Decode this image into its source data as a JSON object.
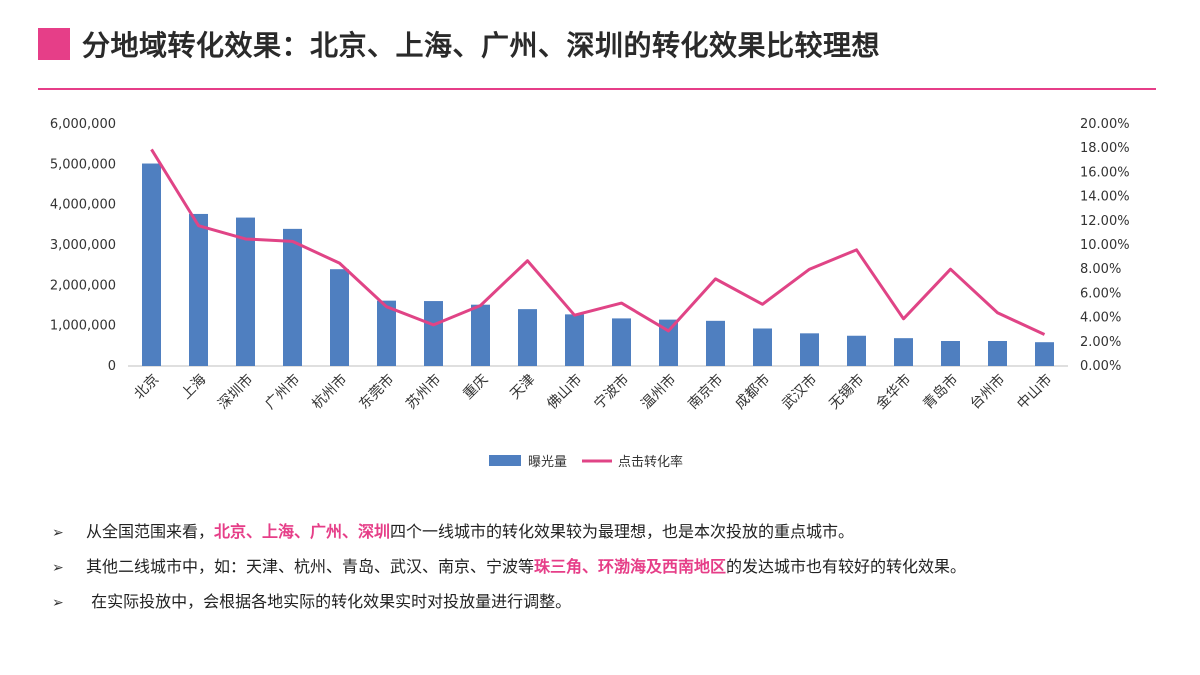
{
  "header": {
    "title": "分地域转化效果：北京、上海、广州、深圳的转化效果比较理想"
  },
  "colors": {
    "accent": "#e63e88",
    "bar": "#4f7fc0",
    "line": "#e04486"
  },
  "chart_data": {
    "type": "bar+line",
    "categories": [
      "北京",
      "上海",
      "深圳市",
      "广州市",
      "杭州市",
      "东莞市",
      "苏州市",
      "重庆",
      "天津",
      "佛山市",
      "宁波市",
      "温州市",
      "南京市",
      "成都市",
      "武汉市",
      "无锡市",
      "金华市",
      "青岛市",
      "台州市",
      "中山市"
    ],
    "series": [
      {
        "name": "曝光量",
        "type": "bar",
        "axis": "left",
        "values": [
          5020000,
          3770000,
          3680000,
          3400000,
          2400000,
          1620000,
          1610000,
          1520000,
          1410000,
          1280000,
          1180000,
          1150000,
          1120000,
          930000,
          810000,
          750000,
          690000,
          620000,
          620000,
          590000
        ]
      },
      {
        "name": "点击转化率",
        "type": "line",
        "axis": "right",
        "values": [
          0.179,
          0.116,
          0.105,
          0.103,
          0.085,
          0.049,
          0.034,
          0.05,
          0.087,
          0.042,
          0.052,
          0.029,
          0.072,
          0.051,
          0.08,
          0.096,
          0.039,
          0.08,
          0.044,
          0.026
        ]
      }
    ],
    "y_left": {
      "range": [
        0,
        6000000
      ],
      "ticks": [
        "0",
        "1,000,000",
        "2,000,000",
        "3,000,000",
        "4,000,000",
        "5,000,000",
        "6,000,000"
      ]
    },
    "y_right": {
      "range": [
        0,
        0.2
      ],
      "ticks": [
        "0.00%",
        "2.00%",
        "4.00%",
        "6.00%",
        "8.00%",
        "10.00%",
        "12.00%",
        "14.00%",
        "16.00%",
        "18.00%",
        "20.00%"
      ]
    },
    "grid": false,
    "legend": "bottom"
  },
  "notes": [
    {
      "segments": [
        {
          "text": "从全国范围来看，",
          "hl": false
        },
        {
          "text": "北京、上海、广州、深圳",
          "hl": true
        },
        {
          "text": "四个一线城市的转化效果较为最理想，也是本次投放的重点城市。",
          "hl": false
        }
      ]
    },
    {
      "segments": [
        {
          "text": "其他二线城市中，如：天津、杭州、青岛、武汉、南京、宁波等",
          "hl": false
        },
        {
          "text": "珠三角、环渤海及西南地区",
          "hl": true
        },
        {
          "text": "的发达城市也有较好的转化效果。",
          "hl": false
        }
      ]
    },
    {
      "segments": [
        {
          "text": " 在实际投放中，会根据各地实际的转化效果实时对投放量进行调整。",
          "hl": false
        }
      ]
    }
  ],
  "bullet_glyph": "➢"
}
